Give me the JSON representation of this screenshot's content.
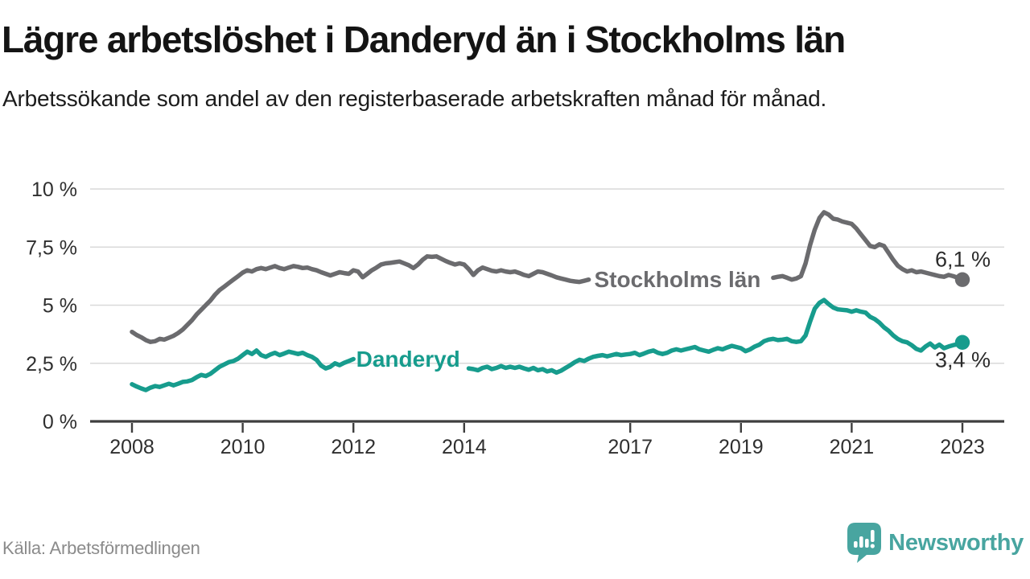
{
  "header": {
    "title": "Lägre arbetslöshet i Danderyd än i Stockholms län",
    "subtitle": "Arbetssökande som andel av den registerbaserade arbetskraften månad för månad."
  },
  "footer": {
    "source": "Källa: Arbetsförmedlingen",
    "brand": "Newsworthy"
  },
  "colors": {
    "stockholm_line": "#6b6b6e",
    "danderyd_line": "#179c8d",
    "axis": "#3e3e3e",
    "gridline": "#d9d9d9",
    "tick_label": "#2f2f2f",
    "value_label": "#2b2b2b",
    "brand_teal": "#48a5a0"
  },
  "chart_data": {
    "type": "line",
    "unit": "%",
    "start_year": 2008,
    "points_per_year": 12,
    "x_axis": {
      "ticks": [
        2008,
        2010,
        2012,
        2014,
        2017,
        2019,
        2021,
        2023
      ]
    },
    "y_axis": {
      "range": [
        0,
        10
      ],
      "ticks": [
        {
          "value": 0,
          "label": "0 %"
        },
        {
          "value": 2.5,
          "label": "2,5 %"
        },
        {
          "value": 5,
          "label": "5 %"
        },
        {
          "value": 7.5,
          "label": "7,5 %"
        },
        {
          "value": 10,
          "label": "10 %"
        }
      ]
    },
    "series": [
      {
        "name": "Stockholms län",
        "color": "#6b6b6e",
        "inline_label": {
          "text": "Stockholms län",
          "year": 2016.35,
          "value": 5.78
        },
        "label_gap_years": [
          2016.26,
          2019.57
        ],
        "end_label": "6,1 %",
        "end_label_position": "above",
        "end_value": 6.1,
        "values": [
          3.85,
          3.72,
          3.62,
          3.5,
          3.42,
          3.45,
          3.55,
          3.52,
          3.6,
          3.68,
          3.8,
          3.95,
          4.15,
          4.35,
          4.6,
          4.8,
          5.0,
          5.2,
          5.45,
          5.65,
          5.8,
          5.95,
          6.1,
          6.25,
          6.4,
          6.5,
          6.45,
          6.55,
          6.6,
          6.55,
          6.62,
          6.68,
          6.6,
          6.55,
          6.62,
          6.68,
          6.65,
          6.6,
          6.62,
          6.55,
          6.5,
          6.42,
          6.35,
          6.28,
          6.35,
          6.42,
          6.38,
          6.35,
          6.5,
          6.45,
          6.2,
          6.35,
          6.5,
          6.62,
          6.75,
          6.8,
          6.82,
          6.85,
          6.88,
          6.8,
          6.72,
          6.6,
          6.75,
          6.95,
          7.1,
          7.08,
          7.1,
          7.0,
          6.9,
          6.82,
          6.75,
          6.8,
          6.75,
          6.55,
          6.3,
          6.5,
          6.62,
          6.55,
          6.48,
          6.45,
          6.5,
          6.45,
          6.42,
          6.45,
          6.38,
          6.3,
          6.25,
          6.35,
          6.45,
          6.42,
          6.35,
          6.28,
          6.2,
          6.15,
          6.1,
          6.05,
          6.02,
          6.0,
          6.05,
          6.1,
          6.08,
          6.05,
          6.1,
          6.12,
          6.1,
          6.08,
          6.1,
          6.12,
          6.15,
          6.18,
          6.2,
          6.22,
          6.2,
          6.22,
          6.25,
          6.22,
          6.18,
          6.15,
          6.12,
          6.1,
          6.08,
          6.05,
          6.02,
          6.0,
          5.98,
          6.0,
          6.02,
          6.0,
          6.02,
          6.05,
          6.08,
          6.1,
          6.1,
          6.12,
          6.1,
          6.12,
          6.15,
          6.12,
          6.15,
          6.18,
          6.22,
          6.25,
          6.18,
          6.1,
          6.15,
          6.25,
          6.8,
          7.6,
          8.25,
          8.75,
          9.0,
          8.9,
          8.72,
          8.68,
          8.6,
          8.55,
          8.5,
          8.3,
          8.05,
          7.8,
          7.55,
          7.5,
          7.62,
          7.55,
          7.25,
          6.95,
          6.7,
          6.55,
          6.45,
          6.5,
          6.42,
          6.45,
          6.4,
          6.35,
          6.3,
          6.25,
          6.22,
          6.3,
          6.25,
          6.18,
          6.1
        ]
      },
      {
        "name": "Danderyd",
        "color": "#179c8d",
        "inline_label": {
          "text": "Danderyd",
          "year": 2012.05,
          "value": 2.36
        },
        "label_gap_years": [
          2012.01,
          2014.07
        ],
        "end_label": "3,4 %",
        "end_label_position": "below",
        "end_value": 3.4,
        "values": [
          1.6,
          1.5,
          1.42,
          1.35,
          1.45,
          1.52,
          1.48,
          1.55,
          1.62,
          1.55,
          1.62,
          1.7,
          1.72,
          1.78,
          1.9,
          2.0,
          1.95,
          2.05,
          2.2,
          2.35,
          2.45,
          2.55,
          2.6,
          2.7,
          2.85,
          3.0,
          2.9,
          3.05,
          2.85,
          2.78,
          2.88,
          2.95,
          2.85,
          2.92,
          3.0,
          2.95,
          2.9,
          2.95,
          2.85,
          2.78,
          2.65,
          2.4,
          2.28,
          2.35,
          2.5,
          2.42,
          2.52,
          2.6,
          2.68,
          2.72,
          2.7,
          2.65,
          2.6,
          2.55,
          2.5,
          2.45,
          2.4,
          2.38,
          2.35,
          2.32,
          2.3,
          2.32,
          2.3,
          2.28,
          2.3,
          2.32,
          2.3,
          2.28,
          2.3,
          2.32,
          2.3,
          2.28,
          2.3,
          2.28,
          2.25,
          2.2,
          2.3,
          2.35,
          2.25,
          2.3,
          2.38,
          2.3,
          2.35,
          2.3,
          2.35,
          2.28,
          2.22,
          2.3,
          2.2,
          2.25,
          2.15,
          2.2,
          2.1,
          2.18,
          2.3,
          2.42,
          2.55,
          2.65,
          2.6,
          2.7,
          2.78,
          2.82,
          2.85,
          2.8,
          2.85,
          2.9,
          2.85,
          2.88,
          2.9,
          2.95,
          2.85,
          2.92,
          3.0,
          3.05,
          2.95,
          2.9,
          2.95,
          3.05,
          3.1,
          3.05,
          3.1,
          3.15,
          3.2,
          3.1,
          3.05,
          3.0,
          3.08,
          3.15,
          3.1,
          3.18,
          3.25,
          3.2,
          3.15,
          3.02,
          3.1,
          3.22,
          3.3,
          3.45,
          3.52,
          3.55,
          3.5,
          3.52,
          3.55,
          3.45,
          3.42,
          3.45,
          3.7,
          4.3,
          4.85,
          5.1,
          5.22,
          5.05,
          4.9,
          4.82,
          4.8,
          4.78,
          4.72,
          4.78,
          4.72,
          4.68,
          4.5,
          4.4,
          4.25,
          4.05,
          3.9,
          3.7,
          3.55,
          3.45,
          3.4,
          3.28,
          3.12,
          3.05,
          3.22,
          3.35,
          3.18,
          3.3,
          3.15,
          3.22,
          3.28,
          3.32,
          3.4
        ]
      }
    ]
  }
}
